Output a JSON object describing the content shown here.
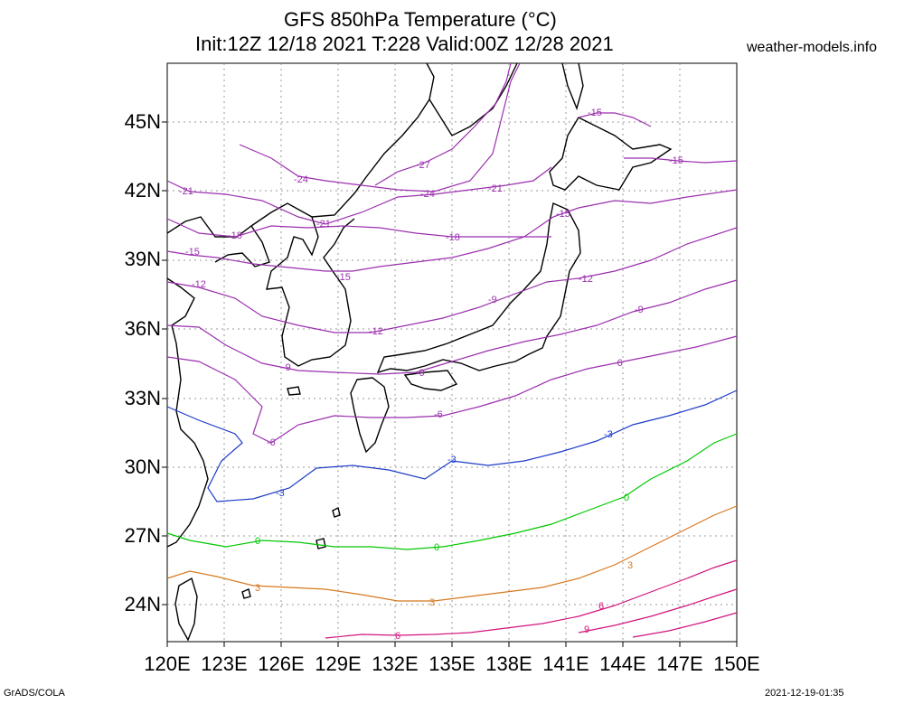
{
  "header": {
    "title_line1": "GFS 850hPa Temperature (°C)",
    "title_line2": "Init:12Z 12/18 2021 T:228 Valid:00Z 12/28 2021",
    "site": "weather-models.info"
  },
  "footer": {
    "left": "GrADS/COLA",
    "right": "2021-12-19-01:35"
  },
  "axes": {
    "lon_labels": [
      "120E",
      "123E",
      "126E",
      "129E",
      "132E",
      "135E",
      "138E",
      "141E",
      "144E",
      "147E",
      "150E"
    ],
    "lat_labels": [
      "45N",
      "42N",
      "39N",
      "36N",
      "33N",
      "30N",
      "27N",
      "24N"
    ]
  },
  "contour_labels": [
    {
      "text": "-27",
      "color": "#9b2fae"
    },
    {
      "text": "-24",
      "color": "#9b2fae"
    },
    {
      "text": "-24",
      "color": "#9b2fae"
    },
    {
      "text": "-21",
      "color": "#9b2fae"
    },
    {
      "text": "-21",
      "color": "#9b2fae"
    },
    {
      "text": "-21",
      "color": "#9b2fae"
    },
    {
      "text": "-18",
      "color": "#9b2fae"
    },
    {
      "text": "-18",
      "color": "#9b2fae"
    },
    {
      "text": "-15",
      "color": "#9b2fae"
    },
    {
      "text": "-15",
      "color": "#9b2fae"
    },
    {
      "text": "-15",
      "color": "#9b2fae"
    },
    {
      "text": "-15",
      "color": "#9b2fae"
    },
    {
      "text": "-15",
      "color": "#9b2fae"
    },
    {
      "text": "-12",
      "color": "#9b2fae"
    },
    {
      "text": "-12",
      "color": "#9b2fae"
    },
    {
      "text": "-12",
      "color": "#9b2fae"
    },
    {
      "text": "-9",
      "color": "#9b2fae"
    },
    {
      "text": "-9",
      "color": "#9b2fae"
    },
    {
      "text": "-9",
      "color": "#9b2fae"
    },
    {
      "text": "-9",
      "color": "#9b2fae"
    },
    {
      "text": "-6",
      "color": "#9b2fae"
    },
    {
      "text": "-6",
      "color": "#9b2fae"
    },
    {
      "text": "-6",
      "color": "#9b2fae"
    },
    {
      "text": "-3",
      "color": "#1e3cc8"
    },
    {
      "text": "-3",
      "color": "#1e3cc8"
    },
    {
      "text": "-3",
      "color": "#1e3cc8"
    },
    {
      "text": "0",
      "color": "#00c800"
    },
    {
      "text": "0",
      "color": "#00c800"
    },
    {
      "text": "0",
      "color": "#00c800"
    },
    {
      "text": "3",
      "color": "#d7781e"
    },
    {
      "text": "3",
      "color": "#d7781e"
    },
    {
      "text": "3",
      "color": "#d7781e"
    },
    {
      "text": "6",
      "color": "#d2147d"
    },
    {
      "text": "6",
      "color": "#d2147d"
    },
    {
      "text": "9",
      "color": "#d2147d"
    }
  ]
}
